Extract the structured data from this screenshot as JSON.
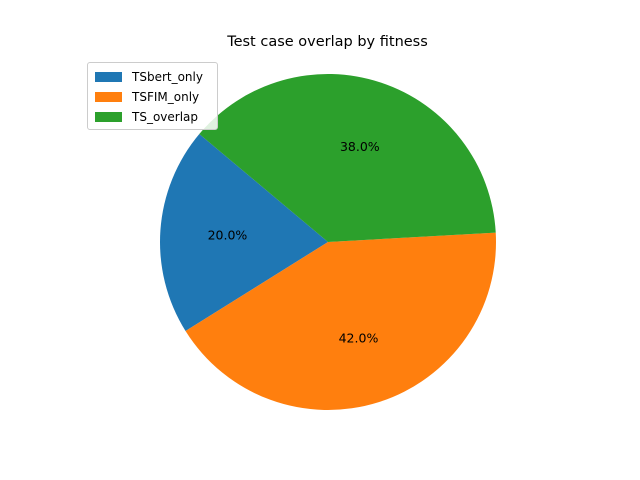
{
  "chart_data": {
    "type": "pie",
    "title": "Test case overlap by fitness",
    "slices": [
      {
        "label": "TSbert_only",
        "value": 20.0,
        "display": "20.0%",
        "color": "#1f77b4"
      },
      {
        "label": "TSFIM_only",
        "value": 42.0,
        "display": "42.0%",
        "color": "#ff7f0e"
      },
      {
        "label": "TS_overlap",
        "value": 38.0,
        "display": "38.0%",
        "color": "#2ca02c"
      }
    ],
    "start_angle_deg": 140,
    "direction": "counterclockwise",
    "legend": {
      "placement": "upper-left"
    }
  }
}
